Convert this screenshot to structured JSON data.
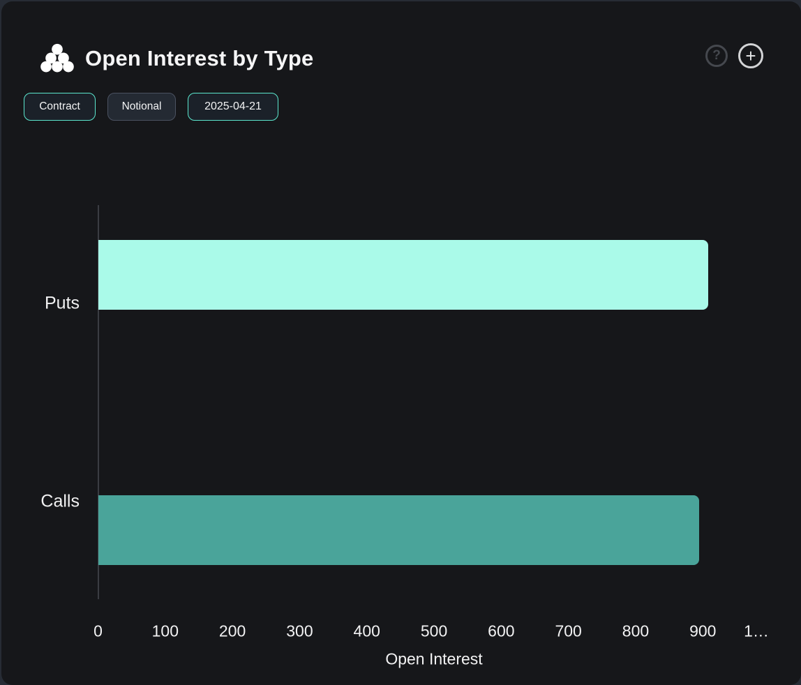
{
  "header": {
    "title": "Open Interest by Type",
    "icon": "dots-pyramid-icon",
    "help_label": "?",
    "add_label": "+"
  },
  "toolbar": {
    "contract_label": "Contract",
    "notional_label": "Notional",
    "date_label": "2025-04-21"
  },
  "colors": {
    "accent_teal": "#5ce8cf",
    "puts_bar": "#aafae9",
    "calls_bar": "#4aa49a",
    "card_bg": "#16171a",
    "page_bg": "#272c35",
    "axis_line": "#3a3c42",
    "text": "#f2f2f3"
  },
  "chart_data": {
    "type": "bar",
    "orientation": "horizontal",
    "categories": [
      "Puts",
      "Calls"
    ],
    "values": [
      908,
      895
    ],
    "bar_colors": [
      "#aafae9",
      "#4aa49a"
    ],
    "title": "Open Interest by Type",
    "xlabel": "Open Interest",
    "ylabel": "",
    "xlim": [
      0,
      1000
    ],
    "xtick_labels": [
      "0",
      "100",
      "200",
      "300",
      "400",
      "500",
      "600",
      "700",
      "800",
      "900",
      "1…"
    ],
    "xtick_values": [
      0,
      100,
      200,
      300,
      400,
      500,
      600,
      700,
      800,
      900,
      1000
    ],
    "grid": false,
    "legend": false
  }
}
